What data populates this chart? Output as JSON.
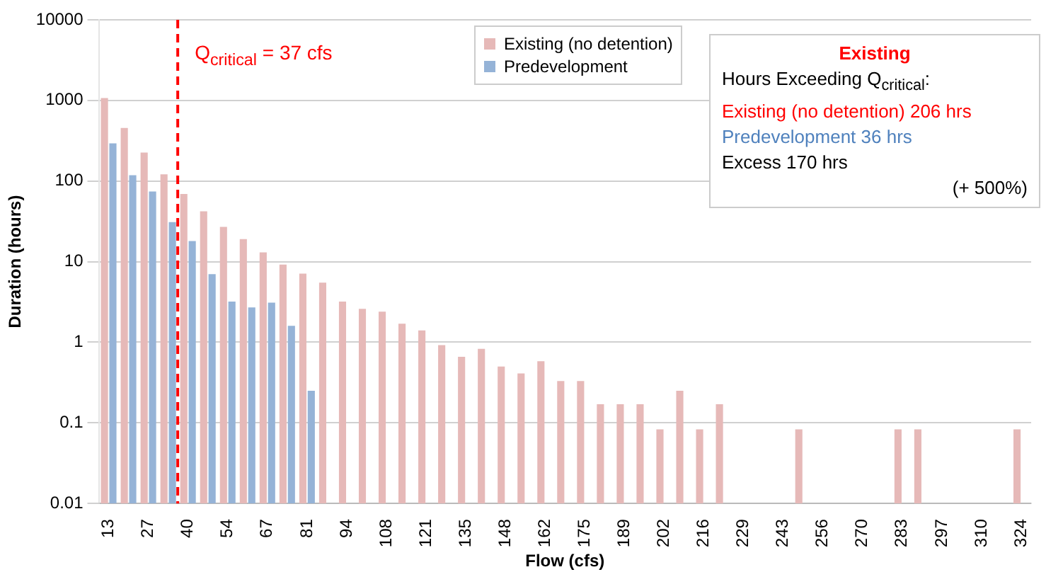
{
  "chart_data": {
    "type": "bar",
    "xlabel": "Flow (cfs)",
    "ylabel": "Duration (hours)",
    "x": [
      13.5,
      20.25,
      27,
      33.75,
      40.5,
      47.25,
      54,
      60.75,
      67.5,
      74.25,
      81,
      87.75,
      94.5,
      101.25,
      108,
      114.75,
      121.5,
      128.25,
      135,
      141.75,
      148.5,
      155.25,
      162,
      168.75,
      175.5,
      182.25,
      189,
      195.75,
      202.5,
      209.25,
      216,
      222.75,
      229.5,
      236.25,
      243,
      249.75,
      256.5,
      263.25,
      270,
      276.75,
      283.5,
      290.25,
      297,
      303.75,
      310.5,
      317.25,
      324
    ],
    "xlim": [
      10.125,
      327.375
    ],
    "xticks": [
      {
        "value": 13.5,
        "label": "13"
      },
      27,
      {
        "value": 40.5,
        "label": "40"
      },
      54,
      {
        "value": 67.5,
        "label": "67"
      },
      81,
      {
        "value": 94.5,
        "label": "94"
      },
      108,
      {
        "value": 121.5,
        "label": "121"
      },
      135,
      {
        "value": 148.5,
        "label": "148"
      },
      162,
      {
        "value": 175.5,
        "label": "175"
      },
      189,
      {
        "value": 202.5,
        "label": "202"
      },
      216,
      {
        "value": 229.5,
        "label": "229"
      },
      243,
      {
        "value": 256.5,
        "label": "256"
      },
      270,
      {
        "value": 283.5,
        "label": "283"
      },
      297,
      {
        "value": 310.5,
        "label": "310"
      },
      324
    ],
    "series": [
      {
        "name": "Existing (no detention)",
        "color": "#e6b9b8",
        "values": [
          1070,
          456,
          226,
          121,
          69,
          42,
          27,
          19,
          13,
          9.2,
          7.1,
          5.5,
          3.2,
          2.6,
          2.4,
          1.7,
          1.4,
          0.92,
          0.66,
          0.83,
          0.5,
          0.41,
          0.58,
          0.33,
          0.33,
          0.17,
          0.17,
          0.17,
          0.083,
          0.25,
          0.083,
          0.17,
          null,
          null,
          null,
          0.083,
          null,
          null,
          null,
          null,
          0.083,
          0.083,
          null,
          null,
          null,
          null,
          0.083
        ]
      },
      {
        "name": "Predevelopment",
        "color": "#95b3d7",
        "values": [
          293,
          118,
          74,
          31,
          18,
          7,
          3.2,
          2.7,
          3.1,
          1.6,
          0.25,
          null,
          null,
          null,
          null,
          null,
          null,
          null,
          null,
          null,
          null,
          null,
          null,
          null,
          null,
          null,
          null,
          null,
          null,
          null,
          null,
          null,
          null,
          null,
          null,
          null,
          null,
          null,
          null,
          null,
          null,
          null,
          null,
          null,
          null,
          null,
          null
        ]
      }
    ],
    "log": "y",
    "ylim": [
      0.01,
      10000
    ],
    "yticks": [
      0.01,
      0.1,
      1,
      10,
      100,
      1000,
      10000
    ],
    "grid": "y",
    "legend": "top",
    "ref_lines": [
      {
        "axis": "x",
        "value": 37,
        "label": "Q$_{critical}$ = 37 cfs",
        "color": "#ff0000",
        "line_style": "dashed"
      }
    ],
    "annotations": [
      "Existing",
      "Hours Exceeding Q$_{critical}$:",
      "Existing (no detention) 206 hrs",
      "Predevelopment 36 hrs",
      "Excess 170 hrs",
      "(+ 500%)"
    ]
  }
}
